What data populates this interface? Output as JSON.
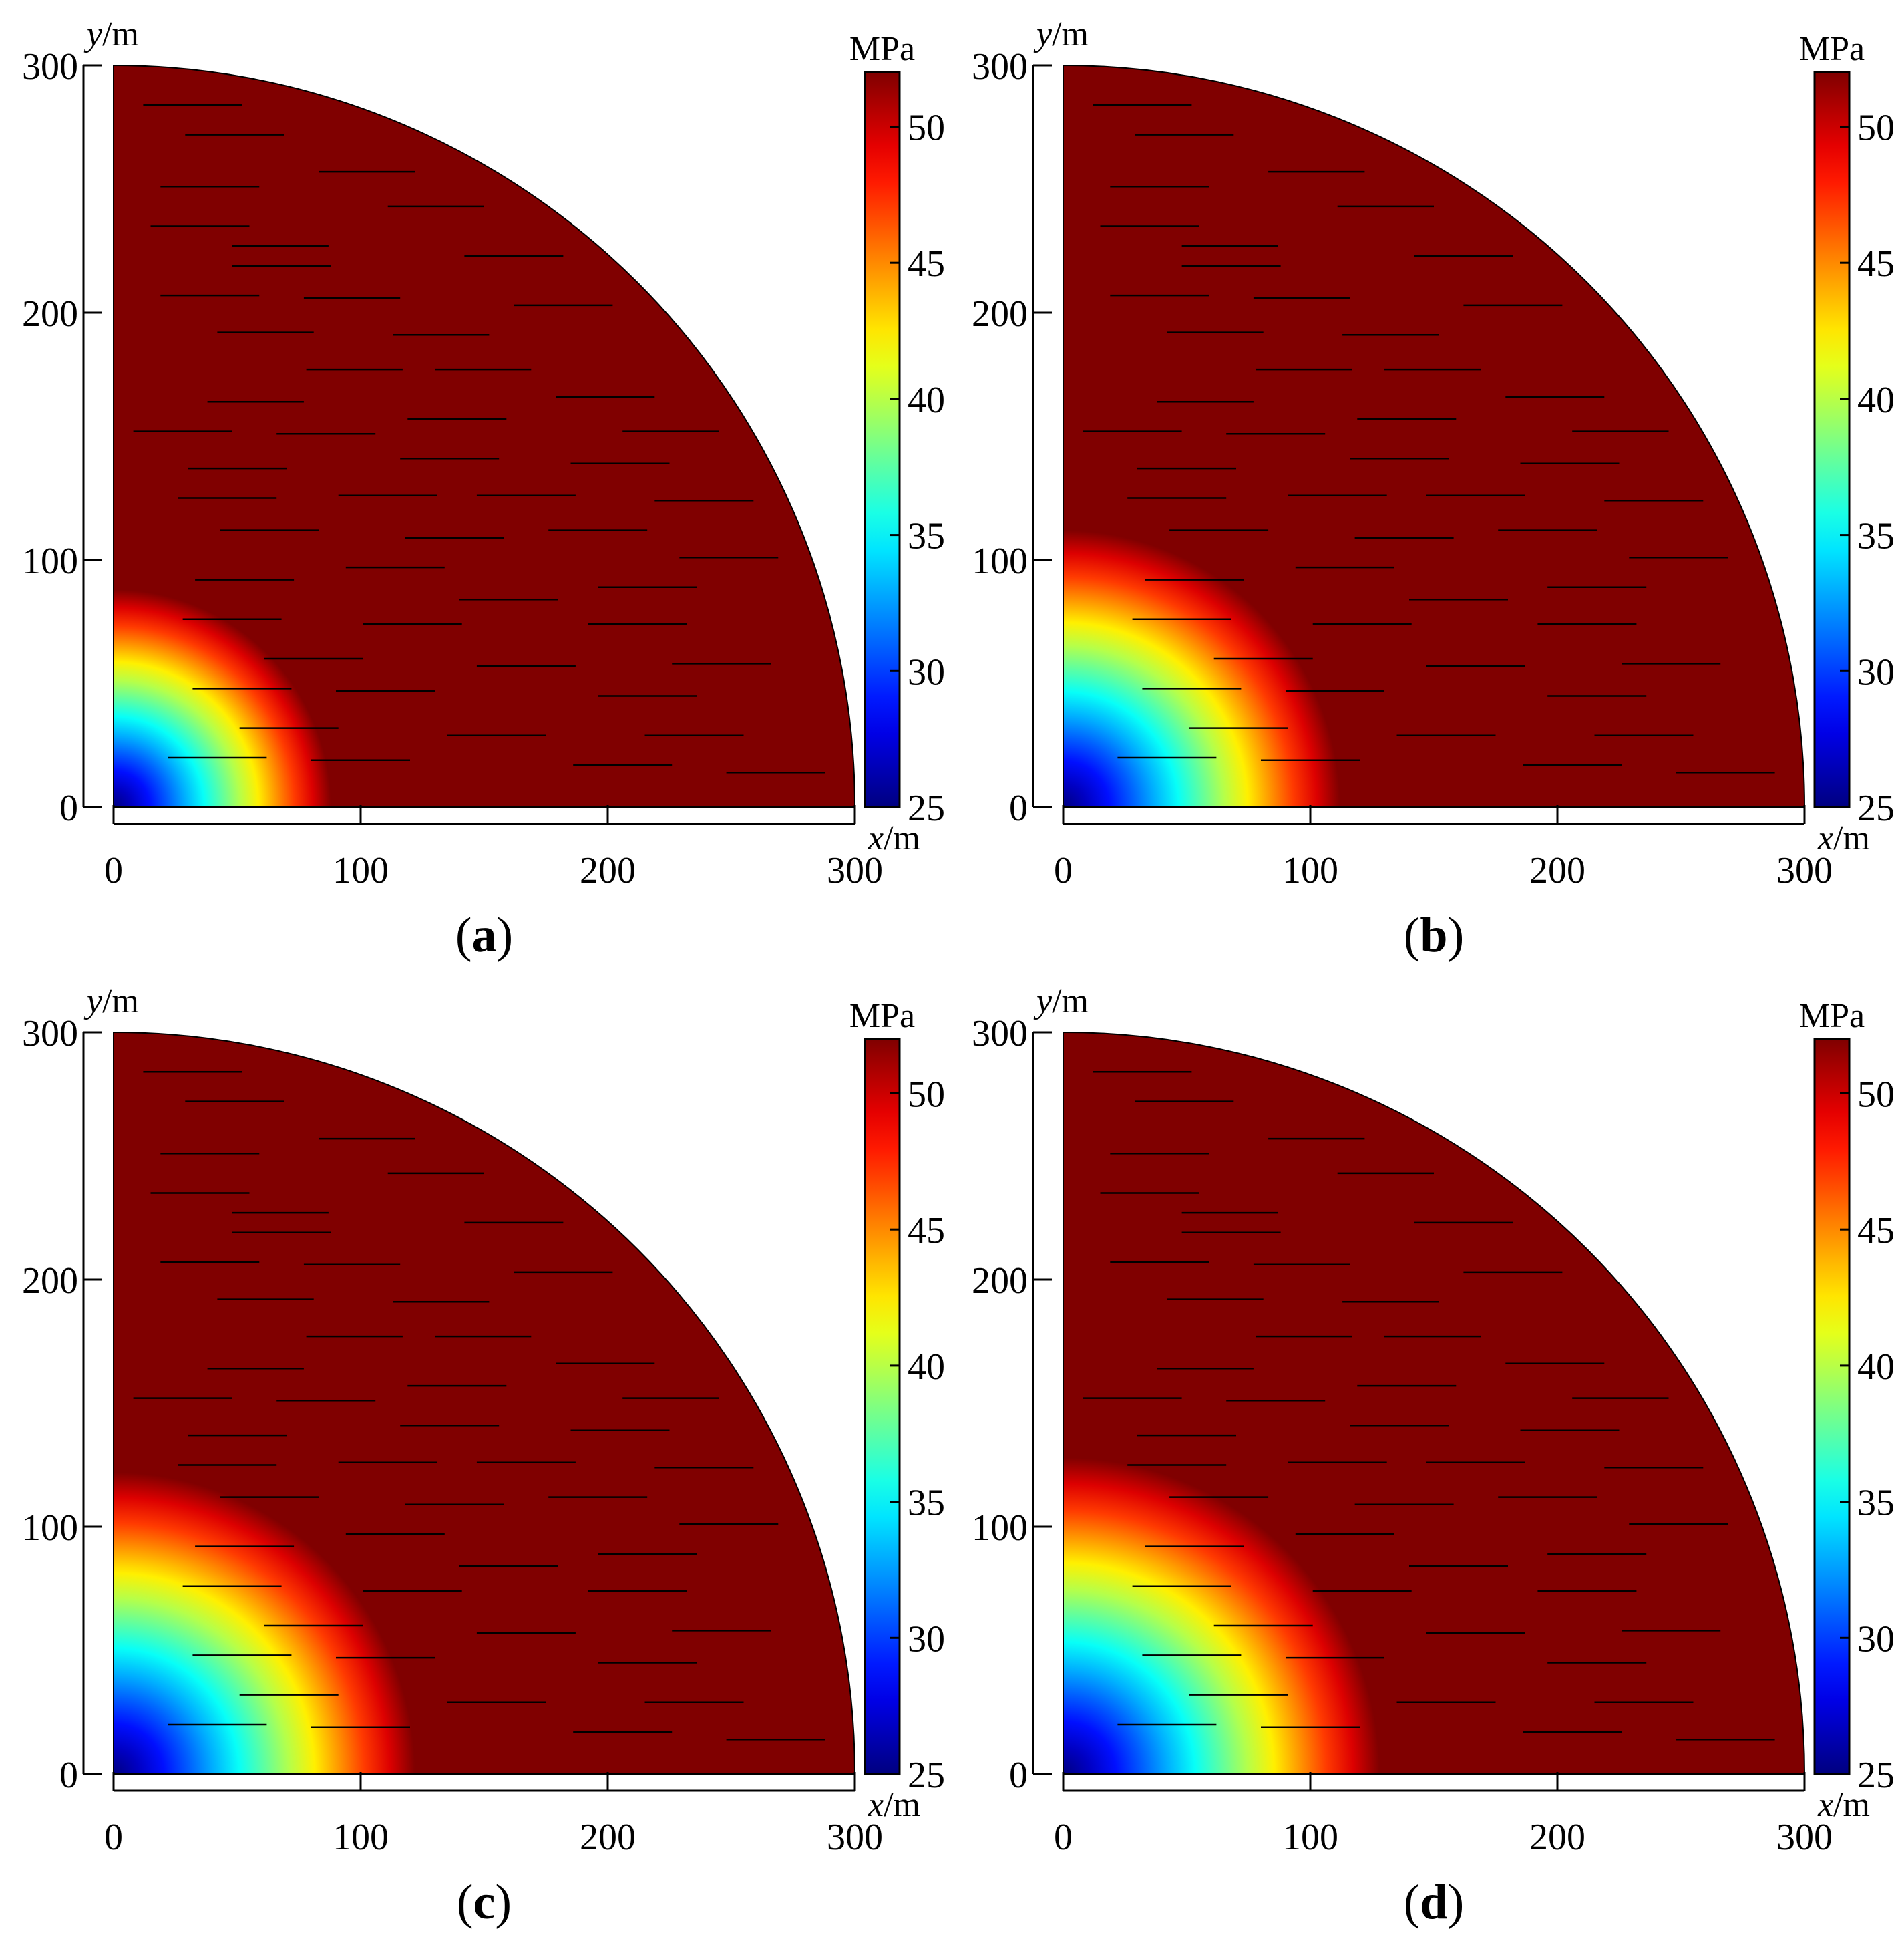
{
  "figure": {
    "panels": [
      "a",
      "b",
      "c",
      "d"
    ]
  },
  "chart_data": [
    {
      "panel": "(a)",
      "type": "heatmap",
      "xlabel": "x/m",
      "ylabel": "y/m",
      "xticks": [
        "0",
        "100",
        "200",
        "300"
      ],
      "yticks": [
        "0",
        "100",
        "200",
        "300"
      ],
      "xlim": [
        0,
        300
      ],
      "ylim": [
        0,
        300
      ],
      "colorbar": {
        "unit": "MPa",
        "min": 25,
        "max": 52,
        "ticks": [
          "25",
          "30",
          "35",
          "40",
          "45",
          "50"
        ]
      },
      "field": {
        "shape": "quarter-disk",
        "radius_m": 300,
        "min_stress": 25,
        "far_field_stress": 52,
        "influence_radius_m": 88
      },
      "fractures": "horizontal"
    },
    {
      "panel": "(b)",
      "type": "heatmap",
      "xlabel": "x/m",
      "ylabel": "y/m",
      "xticks": [
        "0",
        "100",
        "200",
        "300"
      ],
      "yticks": [
        "0",
        "100",
        "200",
        "300"
      ],
      "xlim": [
        0,
        300
      ],
      "ylim": [
        0,
        300
      ],
      "colorbar": {
        "unit": "MPa",
        "min": 25,
        "max": 52,
        "ticks": [
          "25",
          "30",
          "35",
          "40",
          "45",
          "50"
        ]
      },
      "field": {
        "shape": "quarter-disk",
        "radius_m": 300,
        "min_stress": 25,
        "far_field_stress": 52,
        "influence_radius_m": 112
      },
      "fractures": "horizontal"
    },
    {
      "panel": "(c)",
      "type": "heatmap",
      "xlabel": "x/m",
      "ylabel": "y/m",
      "xticks": [
        "0",
        "100",
        "200",
        "300"
      ],
      "yticks": [
        "0",
        "100",
        "200",
        "300"
      ],
      "xlim": [
        0,
        300
      ],
      "ylim": [
        0,
        300
      ],
      "colorbar": {
        "unit": "MPa",
        "min": 25,
        "max": 52,
        "ticks": [
          "25",
          "30",
          "35",
          "40",
          "45",
          "50"
        ]
      },
      "field": {
        "shape": "quarter-disk",
        "radius_m": 300,
        "min_stress": 25,
        "far_field_stress": 52,
        "influence_radius_m": 122
      },
      "fractures": "horizontal"
    },
    {
      "panel": "(d)",
      "type": "heatmap",
      "xlabel": "x/m",
      "ylabel": "y/m",
      "xticks": [
        "0",
        "100",
        "200",
        "300"
      ],
      "yticks": [
        "0",
        "100",
        "200",
        "300"
      ],
      "xlim": [
        0,
        300
      ],
      "ylim": [
        0,
        300
      ],
      "colorbar": {
        "unit": "MPa",
        "min": 25,
        "max": 52,
        "ticks": [
          "25",
          "30",
          "35",
          "40",
          "45",
          "50"
        ]
      },
      "field": {
        "shape": "quarter-disk",
        "radius_m": 300,
        "min_stress": 25,
        "far_field_stress": 52,
        "influence_radius_m": 128
      },
      "fractures": "horizontal"
    }
  ]
}
